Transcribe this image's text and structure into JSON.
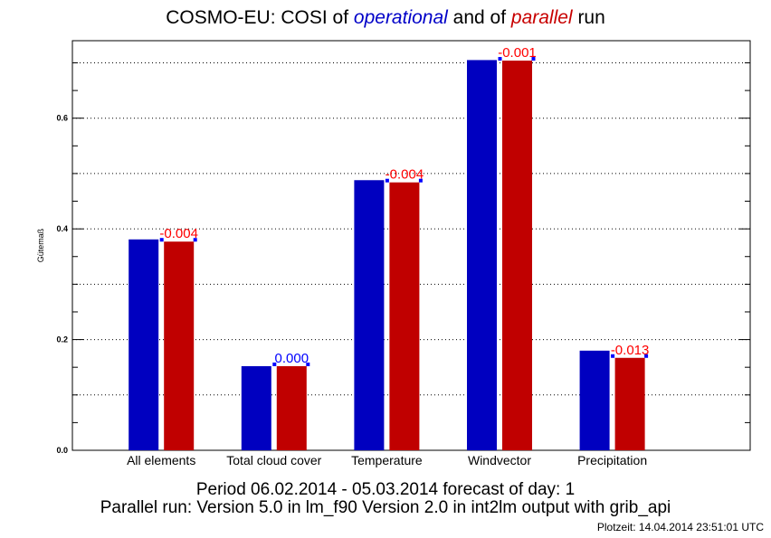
{
  "title": {
    "prefix": "COSMO-EU: COSI  of ",
    "operational": "operational",
    "middle": " and of ",
    "parallel": "parallel",
    "suffix": " run"
  },
  "footer": {
    "line1": "Period 06.02.2014 - 05.03.2014 forecast of day: 1",
    "line2": "Parallel run: Version 5.0 in lm_f90 Version 2.0 in int2lm output with grib_api",
    "plotzeit": "Plotzeit: 14.04.2014 23:51:01 UTC"
  },
  "chart_data": {
    "type": "bar",
    "ylabel": "Gütemaß",
    "ylim": [
      0,
      0.74
    ],
    "yticks": [
      0.0,
      0.2,
      0.4,
      0.6
    ],
    "ytick_labels": [
      "0.0",
      "0.2",
      "0.4",
      "0.6"
    ],
    "grid": "horizontal-dotted",
    "categories": [
      "All elements",
      "Total cloud cover",
      "Temperature",
      "Windvector",
      "Precipitation"
    ],
    "series": [
      {
        "values": [
          0.381,
          0.152,
          0.488,
          0.705,
          0.18
        ]
      },
      {
        "values": [
          0.377,
          0.152,
          0.484,
          0.704,
          0.167
        ]
      }
    ],
    "differences": [
      "-0.004",
      "0.000",
      "-0.004",
      "-0.001",
      "-0.013"
    ],
    "colors": {
      "operational": "#0000c0",
      "parallel": "#c00000",
      "negative_diff": "#ff0000",
      "zero_diff": "#0000ff",
      "marker": "#0000ff"
    }
  }
}
